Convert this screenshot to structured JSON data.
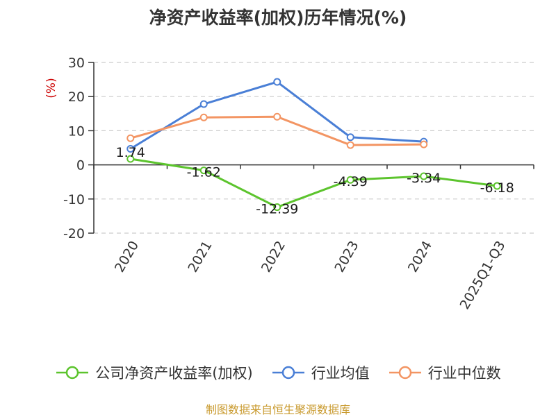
{
  "title": "净资产收益率(加权)历年情况(%)",
  "source": "制图数据来自恒生聚源数据库",
  "colors": {
    "company": "#5cc42d",
    "industry_avg": "#4a7fd6",
    "industry_median": "#f39563",
    "grid": "#cccccc",
    "axis": "#333333",
    "ylabel": "#cc0000"
  },
  "chart_data": {
    "type": "line",
    "title": "净资产收益率(加权)历年情况(%)",
    "categories": [
      "2020",
      "2021",
      "2022",
      "2023",
      "2024",
      "2025Q1-Q3"
    ],
    "ylabel": "(%)",
    "xlabel": "",
    "ylim": [
      -20,
      30
    ],
    "yticks": [
      -20,
      -10,
      0,
      10,
      20,
      30
    ],
    "grid": true,
    "legend_position": "bottom",
    "series": [
      {
        "name": "公司净资产收益率(加权)",
        "color_key": "company",
        "values": [
          1.74,
          -1.62,
          -12.39,
          -4.39,
          -3.34,
          -6.18
        ],
        "labels": [
          "1.74",
          "-1.62",
          "-12.39",
          "-4.39",
          "-3.34",
          "-6.18"
        ]
      },
      {
        "name": "行业均值",
        "color_key": "industry_avg",
        "values": [
          4.7,
          17.8,
          24.3,
          8.1,
          6.8,
          null
        ]
      },
      {
        "name": "行业中位数",
        "color_key": "industry_median",
        "values": [
          7.8,
          13.9,
          14.1,
          5.8,
          6.0,
          null
        ]
      }
    ]
  }
}
